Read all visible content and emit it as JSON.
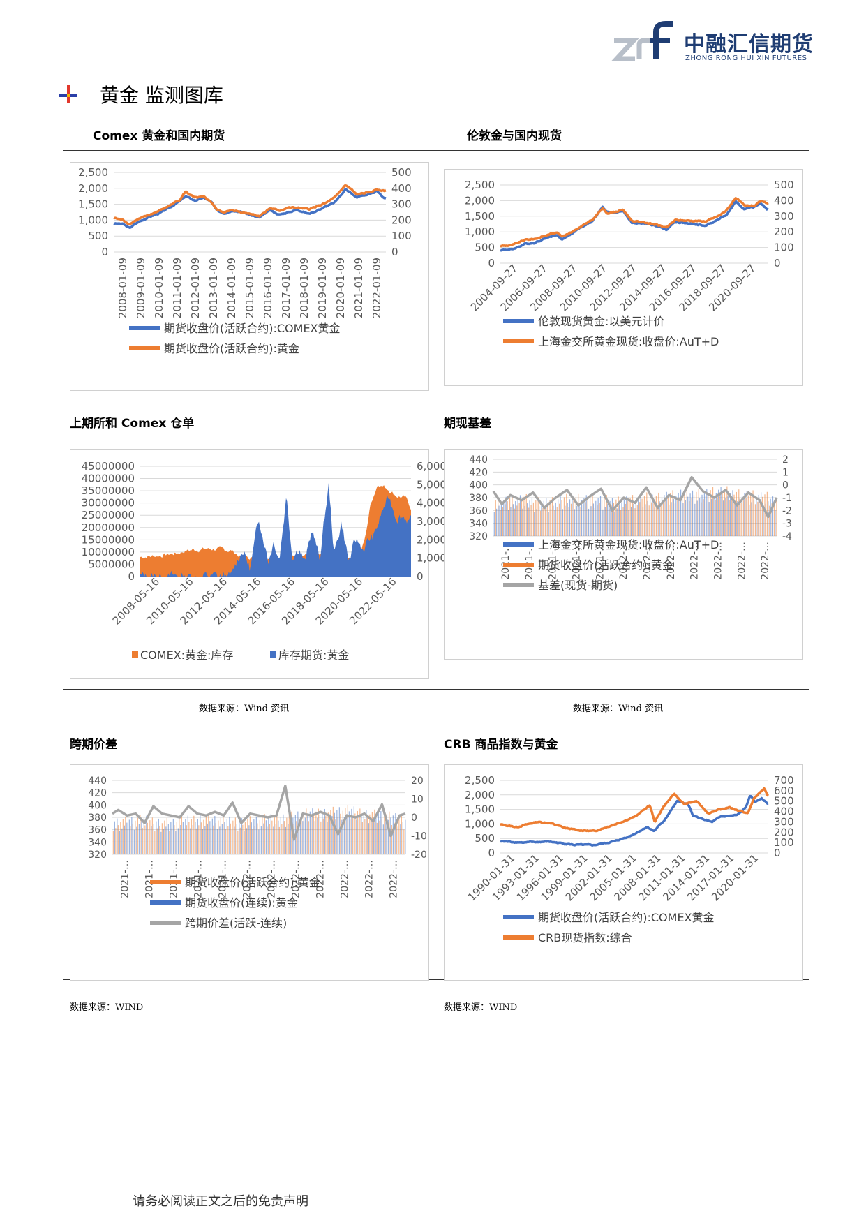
{
  "brand": {
    "name_cn": "中融汇信期货",
    "name_en": "ZHONG RONG HUI XIN FUTURES"
  },
  "section_title": "黄金  监测图库",
  "footer_text": "请务必阅读正文之后的免责声明",
  "colors": {
    "blue": "#4472c4",
    "orange": "#ed7d31",
    "gray": "#a5a5a5",
    "rule": "#333333"
  },
  "panels": [
    {
      "title": "Comex 黄金和国内期货",
      "source": ""
    },
    {
      "title": "伦敦金与国内现货",
      "source": ""
    },
    {
      "title": "上期所和 Comex 仓单",
      "source": "数据来源：Wind 资讯"
    },
    {
      "title": "期现基差",
      "source": "数据来源：Wind 资讯"
    },
    {
      "title": "跨期价差",
      "source": "数据来源：WIND"
    },
    {
      "title": "CRB 商品指数与黄金",
      "source": "数据来源：WIND"
    }
  ],
  "chart_data": [
    {
      "type": "line",
      "left_axis": {
        "min": 0,
        "max": 2500,
        "ticks": [
          "0",
          "500",
          "1,000",
          "1,500",
          "2,000",
          "2,500"
        ]
      },
      "right_axis": {
        "min": 0,
        "max": 500,
        "ticks": [
          "0",
          "100",
          "200",
          "300",
          "400",
          "500"
        ]
      },
      "x_ticks": [
        "2008-01-09",
        "2009-01-09",
        "2010-01-09",
        "2011-01-09",
        "2012-01-09",
        "2013-01-09",
        "2014-01-09",
        "2015-01-09",
        "2016-01-09",
        "2017-01-09",
        "2018-01-09",
        "2019-01-09",
        "2020-01-09",
        "2021-01-09",
        "2022-01-09"
      ],
      "x_range": [
        2008.0,
        2022.8
      ],
      "series": [
        {
          "name": "期货收盘价(活跃合约):COMEX黄金",
          "color": "#4472c4",
          "axis": "left",
          "x": [
            2008.0,
            2008.5,
            2008.85,
            2009.3,
            2009.9,
            2010.5,
            2011.0,
            2011.6,
            2011.9,
            2012.4,
            2012.9,
            2013.3,
            2013.6,
            2014.0,
            2014.5,
            2015.0,
            2015.5,
            2015.9,
            2016.5,
            2017.0,
            2017.5,
            2018.0,
            2018.6,
            2019.0,
            2019.5,
            2020.0,
            2020.6,
            2020.9,
            2021.2,
            2021.6,
            2022.0,
            2022.3,
            2022.7
          ],
          "y": [
            900,
            880,
            750,
            930,
            1100,
            1220,
            1380,
            1600,
            1750,
            1620,
            1700,
            1580,
            1300,
            1220,
            1310,
            1250,
            1150,
            1070,
            1310,
            1170,
            1250,
            1330,
            1200,
            1290,
            1420,
            1550,
            1970,
            1850,
            1720,
            1790,
            1820,
            1920,
            1700
          ]
        },
        {
          "name": "期货收盘价(活跃合约):黄金",
          "color": "#ed7d31",
          "axis": "right",
          "x": [
            2008.0,
            2008.5,
            2008.85,
            2009.3,
            2009.9,
            2010.5,
            2011.0,
            2011.6,
            2011.9,
            2012.4,
            2012.9,
            2013.3,
            2013.6,
            2014.0,
            2014.5,
            2015.0,
            2015.5,
            2015.9,
            2016.5,
            2017.0,
            2017.5,
            2018.0,
            2018.6,
            2019.0,
            2019.5,
            2020.0,
            2020.6,
            2020.9,
            2021.2,
            2021.6,
            2022.0,
            2022.3,
            2022.7
          ],
          "y": [
            215,
            200,
            175,
            205,
            230,
            260,
            290,
            330,
            380,
            340,
            345,
            315,
            265,
            250,
            262,
            248,
            240,
            225,
            275,
            260,
            278,
            278,
            268,
            285,
            305,
            340,
            420,
            395,
            360,
            370,
            375,
            395,
            385
          ]
        }
      ]
    },
    {
      "type": "line",
      "left_axis": {
        "min": 0,
        "max": 2500,
        "ticks": [
          "0",
          "500",
          "1,000",
          "1,500",
          "2,000",
          "2,500"
        ]
      },
      "right_axis": {
        "min": 0,
        "max": 500,
        "ticks": [
          "0",
          "100",
          "200",
          "300",
          "400",
          "500"
        ]
      },
      "x_ticks": [
        "2004-09-27",
        "2006-09-27",
        "2008-09-27",
        "2010-09-27",
        "2012-09-27",
        "2014-09-27",
        "2016-09-27",
        "2018-09-27",
        "2020-09-27"
      ],
      "x_range": [
        2004.7,
        2022.8
      ],
      "series": [
        {
          "name": "伦敦现货黄金:以美元计价",
          "color": "#4472c4",
          "axis": "left",
          "x": [
            2004.7,
            2005.5,
            2006.4,
            2007.0,
            2007.9,
            2008.5,
            2008.85,
            2009.5,
            2010.0,
            2010.9,
            2011.6,
            2011.9,
            2012.5,
            2013.0,
            2013.6,
            2014.5,
            2015.5,
            2015.9,
            2016.5,
            2017.5,
            2018.6,
            2019.5,
            2020.0,
            2020.6,
            2021.2,
            2021.9,
            2022.3,
            2022.7
          ],
          "y": [
            420,
            440,
            620,
            650,
            830,
            900,
            760,
            940,
            1100,
            1330,
            1800,
            1650,
            1600,
            1680,
            1280,
            1280,
            1150,
            1060,
            1320,
            1260,
            1200,
            1420,
            1550,
            1960,
            1730,
            1800,
            1930,
            1720
          ]
        },
        {
          "name": "上海金交所黄金现货:收盘价:AuT+D",
          "color": "#ed7d31",
          "axis": "right",
          "x": [
            2004.7,
            2005.5,
            2006.4,
            2007.0,
            2007.9,
            2008.5,
            2008.85,
            2009.5,
            2010.0,
            2010.9,
            2011.6,
            2011.9,
            2012.5,
            2013.0,
            2013.6,
            2014.5,
            2015.5,
            2015.9,
            2016.5,
            2017.5,
            2018.6,
            2019.5,
            2020.0,
            2020.6,
            2021.2,
            2021.9,
            2022.3,
            2022.7
          ],
          "y": [
            110,
            115,
            150,
            155,
            180,
            200,
            170,
            200,
            225,
            275,
            350,
            320,
            330,
            340,
            270,
            260,
            240,
            225,
            275,
            272,
            268,
            305,
            340,
            420,
            365,
            370,
            395,
            385
          ]
        }
      ]
    },
    {
      "type": "bar",
      "left_axis": {
        "min": 0,
        "max": 45000000,
        "ticks": [
          "0",
          "5000000",
          "10000000",
          "15000000",
          "20000000",
          "25000000",
          "30000000",
          "35000000",
          "40000000",
          "45000000"
        ]
      },
      "right_axis": {
        "min": 0,
        "max": 6000,
        "ticks": [
          "0",
          "1,000",
          "2,000",
          "3,000",
          "4,000",
          "5,000",
          "6,000"
        ]
      },
      "x_ticks": [
        "2008-05-16",
        "2010-05-16",
        "2012-05-16",
        "2014-05-16",
        "2016-05-16",
        "2018-05-16",
        "2020-05-16",
        "2022-05-16"
      ],
      "x_range": [
        2008.0,
        2022.8
      ],
      "series": [
        {
          "name": "COMEX:黄金:库存",
          "color": "#ed7d31",
          "axis": "left",
          "x": [
            2008.0,
            2009.0,
            2010.0,
            2010.5,
            2011.0,
            2011.5,
            2012.0,
            2012.5,
            2013.0,
            2013.5,
            2014.0,
            2015.0,
            2016.0,
            2017.0,
            2017.5,
            2018.0,
            2019.0,
            2019.5,
            2020.0,
            2020.3,
            2020.6,
            2021.0,
            2021.5,
            2022.0,
            2022.5,
            2022.8
          ],
          "y": [
            8000000,
            8500000,
            9500000,
            10500000,
            11000000,
            11200000,
            11300000,
            11000000,
            10500000,
            8000000,
            7800000,
            7700000,
            8500000,
            9000000,
            8800000,
            8500000,
            8000000,
            8200000,
            8500000,
            16000000,
            30000000,
            38000000,
            36000000,
            33000000,
            32000000,
            28000000
          ]
        },
        {
          "name": "库存期货:黄金",
          "color": "#4472c4",
          "axis": "right",
          "x": [
            2008.0,
            2013.0,
            2013.3,
            2013.6,
            2014.0,
            2014.5,
            2015.0,
            2015.3,
            2015.6,
            2016.0,
            2016.3,
            2016.7,
            2017.0,
            2017.4,
            2017.8,
            2018.3,
            2018.6,
            2019.0,
            2019.4,
            2019.8,
            2020.2,
            2020.5,
            2020.8,
            2021.2,
            2021.6,
            2022.0,
            2022.4,
            2022.8
          ],
          "y": [
            0,
            0,
            900,
            1500,
            400,
            3200,
            900,
            2000,
            1000,
            4500,
            1200,
            1600,
            700,
            2600,
            900,
            5000,
            1200,
            3000,
            800,
            2000,
            1500,
            2000,
            2200,
            3500,
            4300,
            3300,
            3300,
            3000
          ]
        }
      ]
    },
    {
      "type": "bar",
      "left_axis": {
        "min": 320,
        "max": 440,
        "ticks": [
          "320",
          "340",
          "360",
          "380",
          "400",
          "420",
          "440"
        ]
      },
      "right_axis": {
        "min": -4,
        "max": 2,
        "ticks": [
          "-4",
          "-3",
          "-2",
          "-1",
          "0",
          "1",
          "2"
        ]
      },
      "x_ticks": [
        "2021-…",
        "2021-…",
        "2021-…",
        "2021-…",
        "2021-…",
        "2022-…",
        "2022-…",
        "2022-…",
        "2022-…",
        "2022-…",
        "2022-…",
        "2022-…"
      ],
      "x_range": [
        0,
        1
      ],
      "series": [
        {
          "name": "上海金交所黄金现货:收盘价:AuT+D",
          "color": "#4472c4",
          "axis": "left",
          "x": [
            0,
            0.1,
            0.2,
            0.3,
            0.4,
            0.5,
            0.6,
            0.7,
            0.8,
            0.9,
            1.0
          ],
          "y": [
            370,
            372,
            368,
            375,
            370,
            372,
            378,
            382,
            385,
            380,
            372
          ]
        },
        {
          "name": "期货收盘价(活跃合约):黄金",
          "color": "#ed7d31",
          "axis": "left",
          "x": [
            0,
            0.1,
            0.2,
            0.3,
            0.4,
            0.5,
            0.6,
            0.7,
            0.8,
            0.9,
            1.0
          ],
          "y": [
            372,
            374,
            370,
            377,
            372,
            374,
            380,
            384,
            387,
            382,
            374
          ]
        },
        {
          "name": "基差(现货-期货)",
          "color": "#a5a5a5",
          "axis": "right",
          "x": [
            0,
            0.03,
            0.06,
            0.1,
            0.14,
            0.18,
            0.22,
            0.26,
            0.3,
            0.34,
            0.38,
            0.42,
            0.46,
            0.5,
            0.54,
            0.58,
            0.62,
            0.66,
            0.7,
            0.74,
            0.78,
            0.82,
            0.86,
            0.9,
            0.94,
            0.97,
            1.0
          ],
          "y": [
            -0.5,
            -1.5,
            -0.8,
            -1.2,
            -0.6,
            -1.8,
            -1.0,
            -0.4,
            -1.6,
            -0.9,
            -0.3,
            -2.0,
            -1.0,
            -1.4,
            -0.2,
            -1.8,
            -0.8,
            -1.2,
            0.6,
            -0.5,
            -1.0,
            -0.4,
            -1.6,
            -0.6,
            -1.2,
            -2.5,
            -1.0
          ]
        }
      ]
    },
    {
      "type": "bar",
      "left_axis": {
        "min": 320,
        "max": 440,
        "ticks": [
          "320",
          "340",
          "360",
          "380",
          "400",
          "420",
          "440"
        ]
      },
      "right_axis": {
        "min": -20,
        "max": 20,
        "ticks": [
          "-20",
          "-10",
          "0",
          "10",
          "20"
        ]
      },
      "x_ticks": [
        "2021-…",
        "2021-…",
        "2021-…",
        "2021-…",
        "2021-…",
        "2022-…",
        "2022-…",
        "2022-…",
        "2022-…",
        "2022-…",
        "2022-…",
        "2022-…"
      ],
      "x_range": [
        0,
        1
      ],
      "series": [
        {
          "name": "期货收盘价(活跃合约):黄金",
          "color": "#ed7d31",
          "axis": "left",
          "x": [
            0,
            0.1,
            0.2,
            0.3,
            0.4,
            0.5,
            0.6,
            0.7,
            0.8,
            0.9,
            1.0
          ],
          "y": [
            370,
            372,
            368,
            375,
            370,
            372,
            378,
            385,
            388,
            382,
            372
          ]
        },
        {
          "name": "期货收盘价(连续):黄金",
          "color": "#4472c4",
          "axis": "left",
          "x": [
            0,
            0.1,
            0.2,
            0.3,
            0.4,
            0.5,
            0.6,
            0.7,
            0.8,
            0.9,
            1.0
          ],
          "y": [
            369,
            371,
            367,
            374,
            369,
            371,
            377,
            384,
            387,
            381,
            371
          ]
        },
        {
          "name": "跨期价差(活跃-连续)",
          "color": "#a5a5a5",
          "axis": "right",
          "x": [
            0,
            0.02,
            0.05,
            0.08,
            0.11,
            0.14,
            0.17,
            0.2,
            0.23,
            0.26,
            0.29,
            0.32,
            0.35,
            0.38,
            0.41,
            0.44,
            0.47,
            0.5,
            0.53,
            0.56,
            0.59,
            0.62,
            0.65,
            0.68,
            0.71,
            0.74,
            0.77,
            0.8,
            0.83,
            0.86,
            0.89,
            0.92,
            0.95,
            0.98,
            1.0
          ],
          "y": [
            2,
            4,
            1,
            2,
            -3,
            6,
            2,
            1,
            0,
            6,
            2,
            1,
            3,
            1,
            8,
            -3,
            2,
            1,
            0,
            1,
            17,
            -12,
            2,
            1,
            3,
            1,
            -9,
            1,
            0,
            2,
            -2,
            7,
            -10,
            1,
            2
          ]
        }
      ]
    },
    {
      "type": "line",
      "left_axis": {
        "min": 0,
        "max": 2500,
        "ticks": [
          "0",
          "500",
          "1,000",
          "1,500",
          "2,000",
          "2,500"
        ]
      },
      "right_axis": {
        "min": 0,
        "max": 700,
        "ticks": [
          "0",
          "100",
          "200",
          "300",
          "400",
          "500",
          "600",
          "700"
        ]
      },
      "x_ticks": [
        "1990-01-31",
        "1993-01-31",
        "1996-01-31",
        "1999-01-31",
        "2002-01-31",
        "2005-01-31",
        "2008-01-31",
        "2011-01-31",
        "2014-01-31",
        "2017-01-31",
        "2020-01-31"
      ],
      "x_range": [
        1990.0,
        2022.8
      ],
      "series": [
        {
          "name": "期货收盘价(活跃合约):COMEX黄金",
          "color": "#4472c4",
          "axis": "left",
          "x": [
            1990.0,
            1993.0,
            1996.0,
            1999.0,
            2001.5,
            2004.0,
            2006.0,
            2008.0,
            2008.8,
            2010.0,
            2011.7,
            2013.0,
            2013.6,
            2015.9,
            2017.0,
            2019.0,
            2020.0,
            2020.6,
            2021.2,
            2022.0,
            2022.7
          ],
          "y": [
            400,
            360,
            390,
            280,
            270,
            400,
            600,
            900,
            750,
            1100,
            1800,
            1650,
            1280,
            1060,
            1250,
            1300,
            1550,
            1970,
            1750,
            1900,
            1700
          ]
        },
        {
          "name": "CRB现货指数:综合",
          "color": "#ed7d31",
          "axis": "right",
          "x": [
            1990.0,
            1992.0,
            1994.5,
            1996.0,
            1998.0,
            1999.5,
            2001.5,
            2003.0,
            2004.5,
            2006.5,
            2008.3,
            2008.9,
            2010.0,
            2011.3,
            2012.5,
            2014.0,
            2015.5,
            2016.0,
            2018.0,
            2019.5,
            2020.3,
            2021.0,
            2021.6,
            2022.3,
            2022.7
          ],
          "y": [
            275,
            250,
            300,
            290,
            240,
            220,
            210,
            250,
            290,
            350,
            460,
            300,
            450,
            570,
            470,
            500,
            380,
            400,
            440,
            400,
            380,
            520,
            570,
            620,
            550
          ]
        }
      ]
    }
  ]
}
